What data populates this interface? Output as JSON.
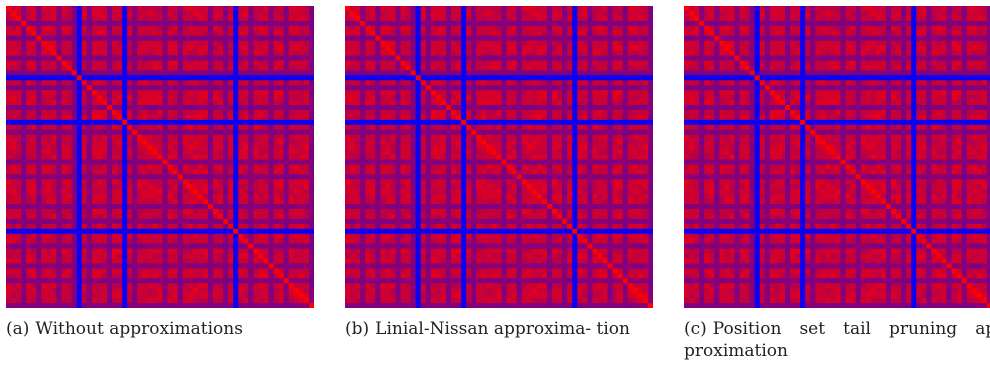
{
  "chart_data": [
    {
      "type": "heatmap",
      "panel_tag": "(a)",
      "caption": "Without approximations",
      "colormap": {
        "low": "#0000ff",
        "high": "#ff0000"
      },
      "n": 61,
      "low_indices": [
        14,
        23,
        45
      ],
      "mid_indices": [
        3,
        6,
        10,
        13,
        16,
        20,
        25,
        31,
        34,
        40,
        43,
        48,
        52,
        55,
        60
      ],
      "diagonal_value": 1.0
    },
    {
      "type": "heatmap",
      "panel_tag": "(b)",
      "caption": "Linial-Nissan approxima- tion",
      "colormap": {
        "low": "#0000ff",
        "high": "#ff0000"
      },
      "n": 61,
      "low_indices": [
        14,
        23,
        45
      ],
      "mid_indices": [
        3,
        6,
        10,
        13,
        16,
        20,
        25,
        31,
        34,
        40,
        43,
        48,
        52,
        55,
        60
      ],
      "diagonal_value": 1.0
    },
    {
      "type": "heatmap",
      "panel_tag": "(c)",
      "caption": "Position set tail pruning ap- proximation",
      "colormap": {
        "low": "#0000ff",
        "high": "#ff0000"
      },
      "n": 61,
      "low_indices": [
        14,
        23,
        45
      ],
      "mid_indices": [
        3,
        6,
        10,
        13,
        16,
        20,
        25,
        31,
        34,
        40,
        43,
        48,
        52,
        55,
        60
      ],
      "diagonal_value": 1.0
    }
  ]
}
